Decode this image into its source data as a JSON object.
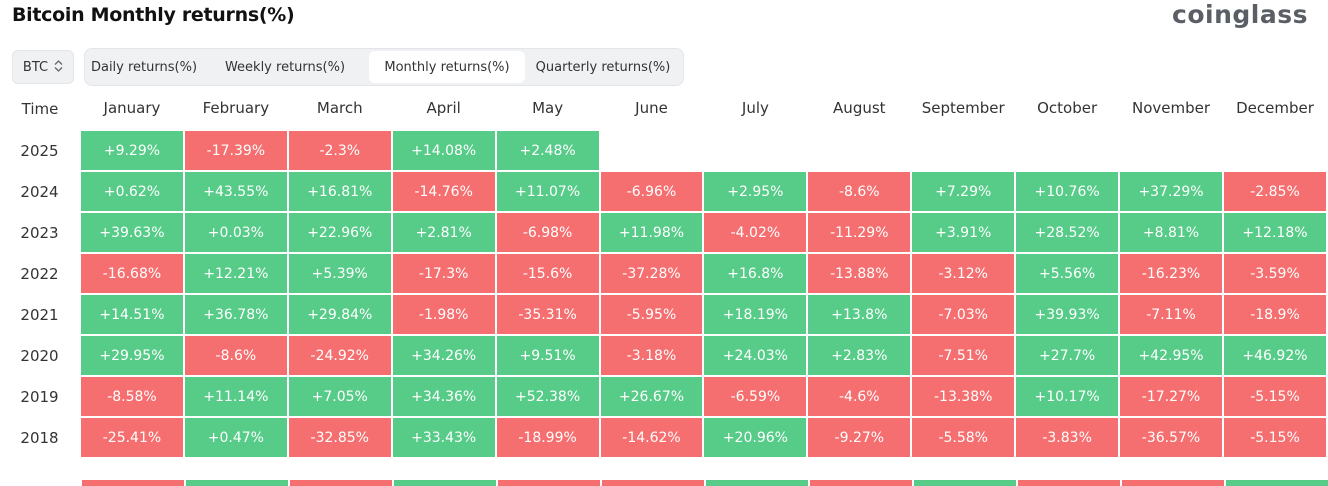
{
  "header": {
    "title": "Bitcoin Monthly returns(%)",
    "logo": "coinglass"
  },
  "asset_select": {
    "value": "BTC",
    "icon": "chevron-up-down-icon"
  },
  "tabs": [
    {
      "label": "Daily returns(%)",
      "active": false
    },
    {
      "label": "Weekly returns(%)",
      "active": false
    },
    {
      "label": "Monthly returns(%)",
      "active": true
    },
    {
      "label": "Quarterly returns(%)",
      "active": false
    }
  ],
  "colors": {
    "positive": "#56cc88",
    "negative": "#f66f70"
  },
  "table": {
    "time_header": "Time",
    "months": [
      "January",
      "February",
      "March",
      "April",
      "May",
      "June",
      "July",
      "August",
      "September",
      "October",
      "November",
      "December"
    ],
    "rows": [
      {
        "year": "2025",
        "values": [
          "+9.29%",
          "-17.39%",
          "-2.3%",
          "+14.08%",
          "+2.48%",
          "",
          "",
          "",
          "",
          "",
          "",
          ""
        ]
      },
      {
        "year": "2024",
        "values": [
          "+0.62%",
          "+43.55%",
          "+16.81%",
          "-14.76%",
          "+11.07%",
          "-6.96%",
          "+2.95%",
          "-8.6%",
          "+7.29%",
          "+10.76%",
          "+37.29%",
          "-2.85%"
        ]
      },
      {
        "year": "2023",
        "values": [
          "+39.63%",
          "+0.03%",
          "+22.96%",
          "+2.81%",
          "-6.98%",
          "+11.98%",
          "-4.02%",
          "-11.29%",
          "+3.91%",
          "+28.52%",
          "+8.81%",
          "+12.18%"
        ]
      },
      {
        "year": "2022",
        "values": [
          "-16.68%",
          "+12.21%",
          "+5.39%",
          "-17.3%",
          "-15.6%",
          "-37.28%",
          "+16.8%",
          "-13.88%",
          "-3.12%",
          "+5.56%",
          "-16.23%",
          "-3.59%"
        ]
      },
      {
        "year": "2021",
        "values": [
          "+14.51%",
          "+36.78%",
          "+29.84%",
          "-1.98%",
          "-35.31%",
          "-5.95%",
          "+18.19%",
          "+13.8%",
          "-7.03%",
          "+39.93%",
          "-7.11%",
          "-18.9%"
        ]
      },
      {
        "year": "2020",
        "values": [
          "+29.95%",
          "-8.6%",
          "-24.92%",
          "+34.26%",
          "+9.51%",
          "-3.18%",
          "+24.03%",
          "+2.83%",
          "-7.51%",
          "+27.7%",
          "+42.95%",
          "+46.92%"
        ]
      },
      {
        "year": "2019",
        "values": [
          "-8.58%",
          "+11.14%",
          "+7.05%",
          "+34.36%",
          "+52.38%",
          "+26.67%",
          "-6.59%",
          "-4.6%",
          "-13.38%",
          "+10.17%",
          "-17.27%",
          "-5.15%"
        ]
      },
      {
        "year": "2018",
        "values": [
          "-25.41%",
          "+0.47%",
          "-32.85%",
          "+33.43%",
          "-18.99%",
          "-14.62%",
          "+20.96%",
          "-9.27%",
          "-5.58%",
          "-3.83%",
          "-36.57%",
          "-5.15%"
        ]
      }
    ]
  }
}
